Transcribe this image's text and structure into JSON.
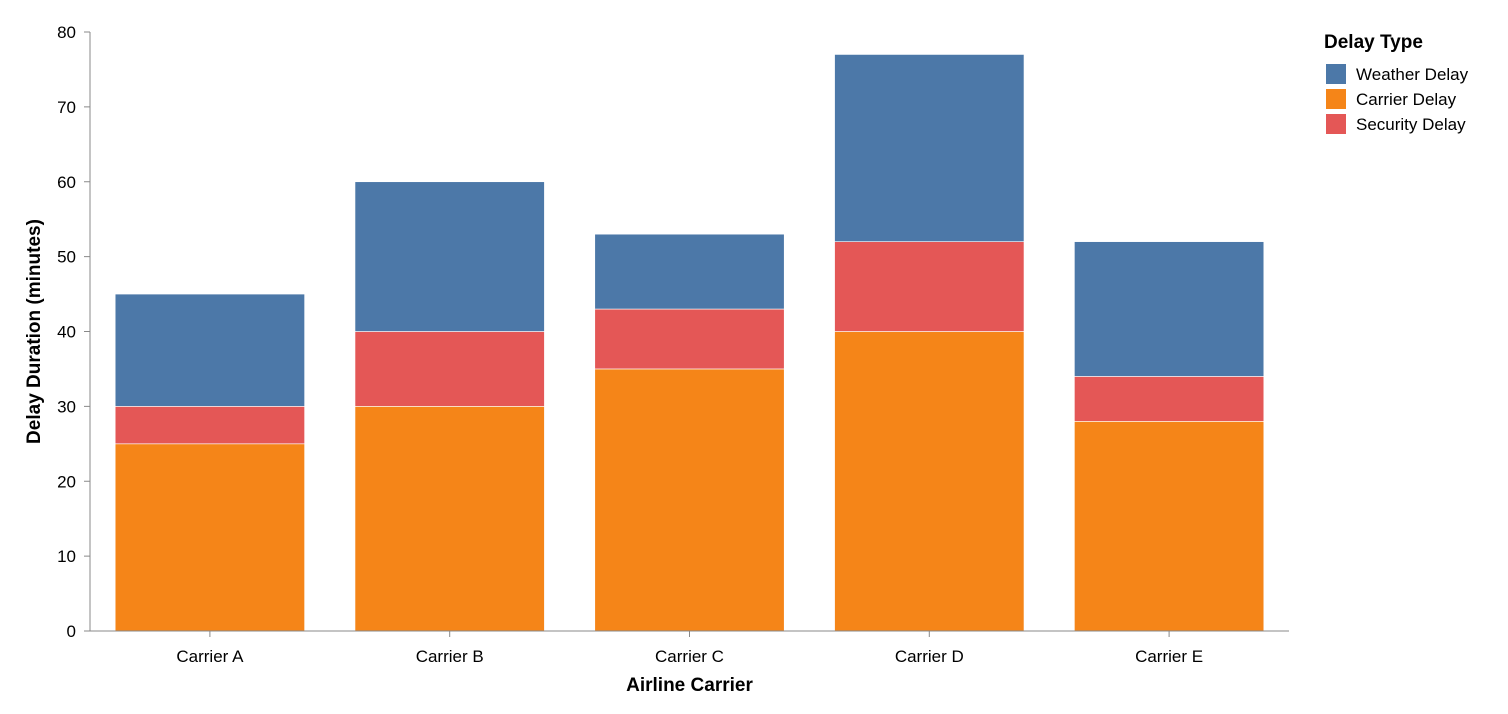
{
  "chart_data": {
    "type": "bar",
    "stacked": true,
    "categories": [
      "Carrier A",
      "Carrier B",
      "Carrier C",
      "Carrier D",
      "Carrier E"
    ],
    "series": [
      {
        "name": "Carrier Delay",
        "color": "#f58518",
        "values": [
          25,
          30,
          35,
          40,
          28
        ]
      },
      {
        "name": "Security Delay",
        "color": "#e45756",
        "values": [
          5,
          10,
          8,
          12,
          6
        ]
      },
      {
        "name": "Weather Delay",
        "color": "#4c78a8",
        "values": [
          15,
          20,
          10,
          25,
          18
        ]
      }
    ],
    "xlabel": "Airline Carrier",
    "ylabel": "Delay Duration (minutes)",
    "ylim": [
      0,
      80
    ],
    "yticks": [
      0,
      10,
      20,
      30,
      40,
      50,
      60,
      70,
      80
    ],
    "grid": false,
    "legend": {
      "title": "Delay Type",
      "placement": "top-right",
      "items": [
        {
          "label": "Weather Delay",
          "color": "#4c78a8"
        },
        {
          "label": "Carrier Delay",
          "color": "#f58518"
        },
        {
          "label": "Security Delay",
          "color": "#e45756"
        }
      ]
    }
  }
}
